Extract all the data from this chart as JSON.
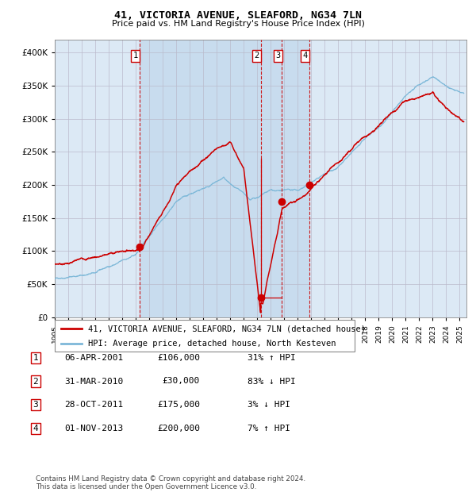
{
  "title": "41, VICTORIA AVENUE, SLEAFORD, NG34 7LN",
  "subtitle": "Price paid vs. HM Land Registry's House Price Index (HPI)",
  "legend_line1": "41, VICTORIA AVENUE, SLEAFORD, NG34 7LN (detached house)",
  "legend_line2": "HPI: Average price, detached house, North Kesteven",
  "footer1": "Contains HM Land Registry data © Crown copyright and database right 2024.",
  "footer2": "This data is licensed under the Open Government Licence v3.0.",
  "transactions": [
    {
      "num": 1,
      "date": "06-APR-2001",
      "price": 106000,
      "pct": "31%",
      "dir": "↑",
      "year": 2001.27
    },
    {
      "num": 2,
      "date": "31-MAR-2010",
      "price": 30000,
      "pct": "83%",
      "dir": "↓",
      "year": 2010.25
    },
    {
      "num": 3,
      "date": "28-OCT-2011",
      "price": 175000,
      "pct": "3%",
      "dir": "↓",
      "year": 2011.83
    },
    {
      "num": 4,
      "date": "01-NOV-2013",
      "price": 200000,
      "pct": "7%",
      "dir": "↑",
      "year": 2013.84
    }
  ],
  "hpi_color": "#7db8d8",
  "price_color": "#cc0000",
  "bg_color": "#dce9f5",
  "grid_color": "#bbbbcc",
  "ylim": [
    0,
    420000
  ],
  "xlim_start": 1995.0,
  "xlim_end": 2025.5
}
